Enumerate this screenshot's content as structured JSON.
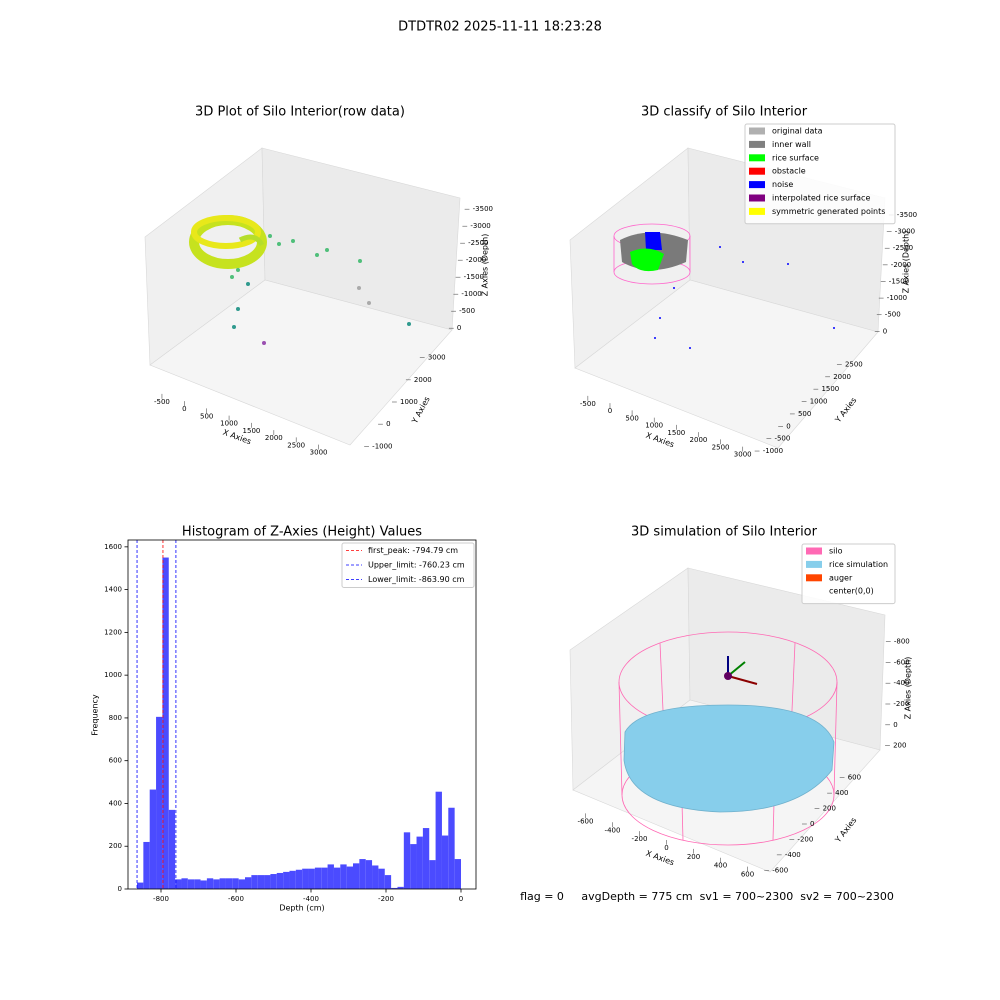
{
  "title": "DTDTR02 2025-11-11 18:23:28",
  "footer": "flag = 0     avgDepth = 775 cm  sv1 = 700~2300  sv2 = 700~2300",
  "chart_data": [
    {
      "type": "scatter3d",
      "title": "3D Plot of Silo Interior(row data)",
      "xlabel": "X Axies",
      "ylabel": "Y Axies",
      "zlabel": "Z Axies (Depth)",
      "xlim": [
        -700,
        3300
      ],
      "xticks": [
        -500,
        0,
        500,
        1000,
        1500,
        2000,
        2500,
        3000
      ],
      "ylim": [
        -1300,
        3300
      ],
      "yticks": [
        -1000,
        0,
        1000,
        2000,
        3000
      ],
      "zlim": [
        -3800,
        200
      ],
      "zticks": [
        0,
        -500,
        -1000,
        -1500,
        -2000,
        -2500,
        -3000,
        -3500
      ]
    },
    {
      "type": "scatter3d",
      "title": "3D classify of Silo Interior",
      "xlabel": "X Axies",
      "ylabel": "Y Axies",
      "zlabel": "Z Axies (Depth)",
      "xlim": [
        -700,
        3300
      ],
      "xticks": [
        -500,
        0,
        500,
        1000,
        1500,
        2000,
        2500,
        3000
      ],
      "ylim": [
        -1200,
        2800
      ],
      "yticks": [
        -1000,
        -500,
        0,
        500,
        1000,
        1500,
        2000,
        2500
      ],
      "zlim": [
        -3800,
        200
      ],
      "zticks": [
        0,
        -500,
        -1000,
        -1500,
        -2000,
        -2500,
        -3000,
        -3500
      ],
      "legend": "upper right",
      "series": [
        {
          "name": "original data",
          "color": "#b0b0b0"
        },
        {
          "name": "inner wall",
          "color": "#808080"
        },
        {
          "name": "rice surface",
          "color": "#00ff00"
        },
        {
          "name": "obstacle",
          "color": "#ff0000"
        },
        {
          "name": "noise",
          "color": "#0000ff"
        },
        {
          "name": "interpolated rice surface",
          "color": "#800080"
        },
        {
          "name": "symmetric generated points",
          "color": "#ffff00"
        }
      ]
    },
    {
      "type": "histogram",
      "title": "Histogram of Z-Axies (Height) Values",
      "xlabel": "Depth (cm)",
      "ylabel": "Frequency",
      "color": "#4b4bff",
      "bins": [
        -864,
        -847.06,
        -830.12,
        -813.18,
        -796.24,
        -779.29,
        -762.35,
        -745.41,
        -728.47,
        -711.53,
        -694.59,
        -677.65,
        -660.71,
        -643.76,
        -626.82,
        -609.88,
        -592.94,
        -576,
        -559.06,
        -542.12,
        -525.18,
        -508.24,
        -491.29,
        -474.35,
        -457.41,
        -440.47,
        -423.53,
        -406.59,
        -389.65,
        -372.71,
        -355.76,
        -338.82,
        -321.88,
        -304.94,
        -288,
        -271.06,
        -254.12,
        -237.18,
        -220.24,
        -203.29,
        -186.35,
        -169.41,
        -152.47,
        -135.53,
        -118.59,
        -101.65,
        -84.71,
        -67.76,
        -50.82,
        -33.88,
        -16.94,
        0
      ],
      "values": [
        30,
        220,
        465,
        805,
        1550,
        370,
        45,
        50,
        45,
        45,
        40,
        50,
        45,
        50,
        50,
        50,
        45,
        55,
        65,
        65,
        65,
        70,
        75,
        80,
        85,
        90,
        95,
        95,
        100,
        100,
        115,
        100,
        115,
        105,
        120,
        140,
        135,
        110,
        95,
        65,
        5,
        10,
        265,
        210,
        245,
        285,
        135,
        455,
        250,
        380,
        140
      ],
      "xlim": [
        -888,
        40
      ],
      "xticks": [
        -800,
        -600,
        -400,
        -200,
        0
      ],
      "ylim": [
        0,
        1632
      ],
      "yticks": [
        0,
        200,
        400,
        600,
        800,
        1000,
        1200,
        1400,
        1600
      ],
      "legend": "upper right",
      "lines": [
        {
          "name": "first_peak: -794.79 cm",
          "value": -794.79,
          "color": "#ff0000"
        },
        {
          "name": "Upper_limit: -760.23 cm",
          "value": -760.23,
          "color": "#0000ff"
        },
        {
          "name": "Lower_limit: -863.90 cm",
          "value": -863.9,
          "color": "#0000ff"
        }
      ]
    },
    {
      "type": "surface3d",
      "title": "3D simulation of Silo Interior",
      "xlabel": "X Axies",
      "ylabel": "Y Axies",
      "zlabel": "Z Axies (Depth)",
      "xlim": [
        -700,
        700
      ],
      "xticks": [
        -600,
        -400,
        -200,
        0,
        200,
        400,
        600
      ],
      "ylim": [
        -700,
        700
      ],
      "yticks": [
        -600,
        -400,
        -200,
        0,
        200,
        400,
        600
      ],
      "zlim": [
        -950,
        300
      ],
      "zticks": [
        200,
        0,
        -200,
        -400,
        -600,
        -800
      ],
      "legend": "upper right",
      "series": [
        {
          "name": "silo",
          "color": "#ff69b4"
        },
        {
          "name": "rice simulation",
          "color": "#87ceeb"
        },
        {
          "name": "auger",
          "color": "#ff4500"
        },
        {
          "name": "center(0,0)",
          "color": "#ffffff"
        }
      ]
    }
  ]
}
